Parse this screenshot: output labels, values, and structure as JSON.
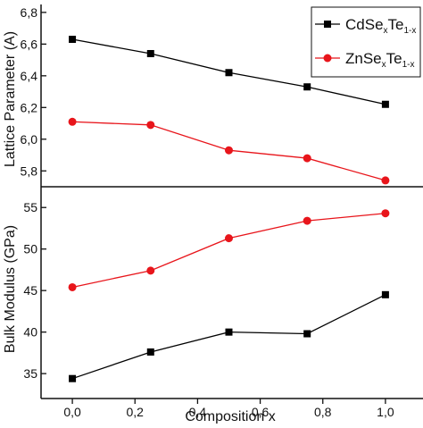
{
  "colors": {
    "series_1": "#000000",
    "series_2": "#e8151b",
    "axis": "#111111"
  },
  "chart_data": [
    {
      "type": "line",
      "panel": "top",
      "ylabel": "Lattice Parameter (Å)",
      "ylabel_visible": "Lattice Parameter (A)",
      "ylim": [
        5.7,
        6.85
      ],
      "yticks": [
        5.8,
        6.0,
        6.2,
        6.4,
        6.6,
        6.8
      ],
      "ytick_labels": [
        "5,8",
        "6,0",
        "6,2",
        "6,4",
        "6,6",
        "6,8"
      ],
      "x": [
        0.0,
        0.25,
        0.5,
        0.75,
        1.0
      ],
      "series": [
        {
          "name": "CdSexTe1-x",
          "name_main": "CdSe",
          "name_sub1": "x",
          "name_mid": "Te",
          "name_sub2": "1-x",
          "marker": "square",
          "color": "#000000",
          "values": [
            6.63,
            6.54,
            6.42,
            6.33,
            6.22
          ]
        },
        {
          "name": "ZnSexTe1-x",
          "name_main": "ZnSe",
          "name_sub1": "x",
          "name_mid": "Te",
          "name_sub2": "1-x",
          "marker": "circle",
          "color": "#e8151b",
          "values": [
            6.11,
            6.09,
            5.93,
            5.88,
            5.74
          ]
        }
      ],
      "legend": "top-right"
    },
    {
      "type": "line",
      "panel": "bottom",
      "ylabel": "Bulk Modulus (GPa)",
      "xlabel": "Composition x",
      "xlim": [
        -0.1,
        1.12
      ],
      "xticks": [
        0.0,
        0.2,
        0.4,
        0.6,
        0.8,
        1.0
      ],
      "xtick_labels": [
        "0,0",
        "0,2",
        "0,4",
        "0,6",
        "0,8",
        "1,0"
      ],
      "ylim": [
        32,
        57.5
      ],
      "yticks": [
        35,
        40,
        45,
        50,
        55
      ],
      "ytick_labels": [
        "35",
        "40",
        "45",
        "50",
        "55"
      ],
      "x": [
        0.0,
        0.25,
        0.5,
        0.75,
        1.0
      ],
      "series": [
        {
          "name": "CdSexTe1-x",
          "marker": "square",
          "color": "#000000",
          "values": [
            34.4,
            37.6,
            40.0,
            39.8,
            44.5
          ]
        },
        {
          "name": "ZnSexTe1-x",
          "marker": "circle",
          "color": "#e8151b",
          "values": [
            45.4,
            47.4,
            51.3,
            53.4,
            54.3
          ]
        }
      ]
    }
  ]
}
